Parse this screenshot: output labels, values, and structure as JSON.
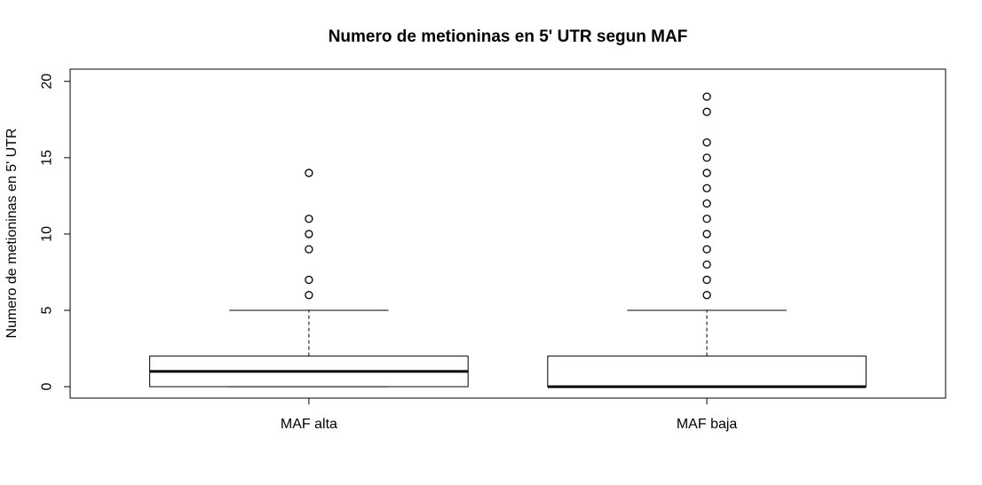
{
  "chart_data": {
    "type": "boxplot",
    "title": "Numero de metioninas en 5' UTR segun MAF",
    "xlabel": "",
    "ylabel": "Numero de metioninas en 5' UTR",
    "ylim": [
      -0.75,
      20.8
    ],
    "yticks": [
      0,
      5,
      10,
      15,
      20
    ],
    "grid": false,
    "legend": "none",
    "categories": [
      "MAF alta",
      "MAF baja"
    ],
    "boxes": [
      {
        "category": "MAF alta",
        "whisker_low": 0,
        "q1": 0,
        "median": 1,
        "q3": 2,
        "whisker_high": 5,
        "outliers": [
          6,
          7,
          9,
          10,
          11,
          14
        ]
      },
      {
        "category": "MAF baja",
        "whisker_low": 0,
        "q1": 0,
        "median": 0,
        "q3": 2,
        "whisker_high": 5,
        "outliers": [
          6,
          7,
          8,
          9,
          10,
          11,
          12,
          13,
          14,
          15,
          16,
          18,
          19
        ]
      }
    ]
  }
}
